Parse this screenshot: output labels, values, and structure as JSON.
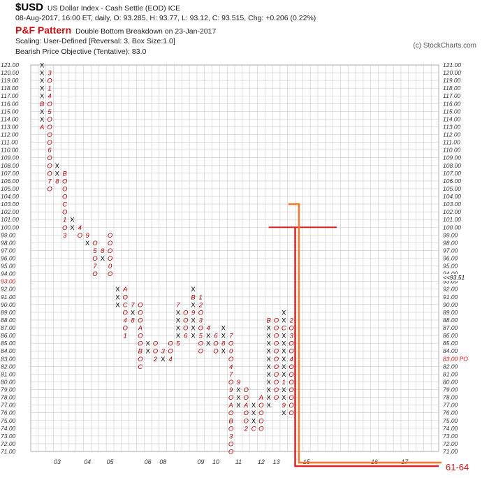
{
  "header": {
    "symbol": "$USD",
    "description": "US Dollar Index - Cash Settle (EOD)  ICE",
    "quote_line": "08-Aug-2017, 16:00 ET, daily, O: 93.285, H: 93.77, L: 93.12, C: 93.515, Chg: +0.206 (0.22%)",
    "pattern_label": "P&F Pattern",
    "pattern_text": "Double Bottom Breakdown on 23-Jan-2017",
    "scaling": "Scaling: User-Defined [Reversal: 3, Box Size:1.0]",
    "objective": "Bearish Price Objective (Tentative): 83.0",
    "copyright": "(c) StockCharts.com"
  },
  "colors": {
    "x_mark": "#000000",
    "o_mark": "#aa0000",
    "month_mark": "#aa0000",
    "trendline": "#dd2222",
    "target_line": "#ff7722",
    "grid": "#c8c8c8",
    "red_label": "#cc1111"
  },
  "chart_data": {
    "type": "point-and-figure",
    "box_size": 1.0,
    "reversal": 3,
    "ylim": [
      71,
      121
    ],
    "y_ticks": [
      71,
      72,
      73,
      74,
      75,
      76,
      77,
      78,
      79,
      80,
      81,
      82,
      83,
      84,
      85,
      86,
      87,
      88,
      89,
      90,
      91,
      92,
      93,
      94,
      95,
      96,
      97,
      98,
      99,
      100,
      101,
      102,
      103,
      104,
      105,
      106,
      107,
      108,
      109,
      110,
      111,
      112,
      113,
      114,
      115,
      116,
      117,
      118,
      119,
      120,
      121
    ],
    "price_markers": {
      "left": {
        "value": 93,
        "label": "93.00"
      },
      "right_last": {
        "value": 93.51,
        "label": "<<93.51"
      },
      "right_objective": {
        "value": 83,
        "label": "83.00 PO"
      }
    },
    "x_labels": [
      {
        "col": 3,
        "label": "03"
      },
      {
        "col": 7,
        "label": "04"
      },
      {
        "col": 10,
        "label": "05"
      },
      {
        "col": 15,
        "label": "06"
      },
      {
        "col": 17,
        "label": "08"
      },
      {
        "col": 22,
        "label": "09"
      },
      {
        "col": 24,
        "label": "10"
      },
      {
        "col": 27,
        "label": "11"
      },
      {
        "col": 30,
        "label": "12"
      },
      {
        "col": 32,
        "label": "13"
      },
      {
        "col": 36,
        "label": "15"
      },
      {
        "col": 45,
        "label": "16"
      },
      {
        "col": 49,
        "label": "17"
      }
    ],
    "columns": [
      {
        "type": "X",
        "low": 113,
        "high": 121,
        "marks": {
          "113": "A",
          "116": "B"
        }
      },
      {
        "type": "O",
        "high": 120,
        "low": 105,
        "marks": {
          "120": "3",
          "118": "1",
          "117": "4",
          "115": "5",
          "110": "6",
          "106": "7"
        }
      },
      {
        "type": "X",
        "low": 106,
        "high": 108,
        "marks": {
          "106": "8"
        }
      },
      {
        "type": "O",
        "high": 107,
        "low": 99,
        "marks": {
          "107": "B",
          "103": "C",
          "101": "1",
          "99": "3"
        }
      },
      {
        "type": "X",
        "low": 100,
        "high": 101,
        "marks": {}
      },
      {
        "type": "O",
        "high": 100,
        "low": 99,
        "marks": {
          "100": "4"
        }
      },
      {
        "type": "X",
        "low": 98,
        "high": 99,
        "marks": {
          "99": "9"
        }
      },
      {
        "type": "O",
        "high": 98,
        "low": 94,
        "marks": {
          "97": "5",
          "95": "7"
        }
      },
      {
        "type": "X",
        "low": 96,
        "high": 97,
        "marks": {
          "97": "8"
        }
      },
      {
        "type": "O",
        "high": 99,
        "low": 94,
        "marks": {
          "95": "0"
        }
      },
      {
        "type": "X",
        "low": 90,
        "high": 92,
        "marks": {}
      },
      {
        "type": "O",
        "high": 92,
        "low": 86,
        "marks": {
          "92": "A",
          "90": "C",
          "88": "4",
          "86": "1"
        }
      },
      {
        "type": "X",
        "low": 88,
        "high": 90,
        "marks": {
          "90": "7",
          "88": "8"
        }
      },
      {
        "type": "O",
        "high": 90,
        "low": 82,
        "marks": {
          "87": "A",
          "84": "B",
          "82": "C"
        }
      },
      {
        "type": "X",
        "low": 84,
        "high": 85,
        "marks": {}
      },
      {
        "type": "O",
        "high": 85,
        "low": 83,
        "marks": {
          "83": "2"
        }
      },
      {
        "type": "X",
        "low": 83,
        "high": 84,
        "marks": {
          "84": "3"
        }
      },
      {
        "type": "O",
        "high": 85,
        "low": 83,
        "marks": {
          "83": "4"
        }
      },
      {
        "type": "X",
        "low": 85,
        "high": 90,
        "marks": {
          "90": "7",
          "85": "5"
        }
      },
      {
        "type": "O",
        "high": 89,
        "low": 86,
        "marks": {
          "86": "6"
        }
      },
      {
        "type": "X",
        "low": 86,
        "high": 92,
        "marks": {
          "91": "B",
          "89": "9"
        }
      },
      {
        "type": "O",
        "high": 91,
        "low": 84,
        "marks": {
          "91": "1",
          "90": "2",
          "88": "3",
          "86": "5"
        }
      },
      {
        "type": "X",
        "low": 85,
        "high": 87,
        "marks": {
          "87": "4"
        }
      },
      {
        "type": "O",
        "high": 86,
        "low": 84,
        "marks": {
          "86": "6"
        }
      },
      {
        "type": "X",
        "low": 84,
        "high": 87,
        "marks": {
          "85": "8"
        }
      },
      {
        "type": "O",
        "high": 86,
        "low": 71,
        "marks": {
          "86": "7",
          "84": "0",
          "82": "4",
          "81": "7",
          "79": "9",
          "77": "A",
          "75": "B",
          "73": "3"
        }
      },
      {
        "type": "X",
        "low": 77,
        "high": 80,
        "marks": {
          "80": "9"
        }
      },
      {
        "type": "O",
        "high": 79,
        "low": 74,
        "marks": {
          "77": "A",
          "74": "2"
        }
      },
      {
        "type": "X",
        "low": 74,
        "high": 77,
        "marks": {
          "74": "C"
        }
      },
      {
        "type": "O",
        "high": 78,
        "low": 74,
        "marks": {
          "78": "A"
        }
      },
      {
        "type": "X",
        "low": 77,
        "high": 88,
        "marks": {
          "88": "B"
        }
      },
      {
        "type": "O",
        "high": 88,
        "low": 78,
        "marks": {}
      },
      {
        "type": "X",
        "low": 76,
        "high": 89,
        "marks": {
          "87": "C",
          "80": "1",
          "77": "9"
        }
      },
      {
        "type": "O",
        "high": 88,
        "low": 76,
        "marks": {
          "88": "2",
          "86": "3",
          "83": "4"
        }
      }
    ],
    "trendlines": [
      {
        "name": "",
        "from": [
          31,
          100
        ],
        "to": [
          40,
          100
        ]
      }
    ],
    "objective_box": {
      "label": "61-64",
      "from_price": 103,
      "to_price": 71
    }
  }
}
